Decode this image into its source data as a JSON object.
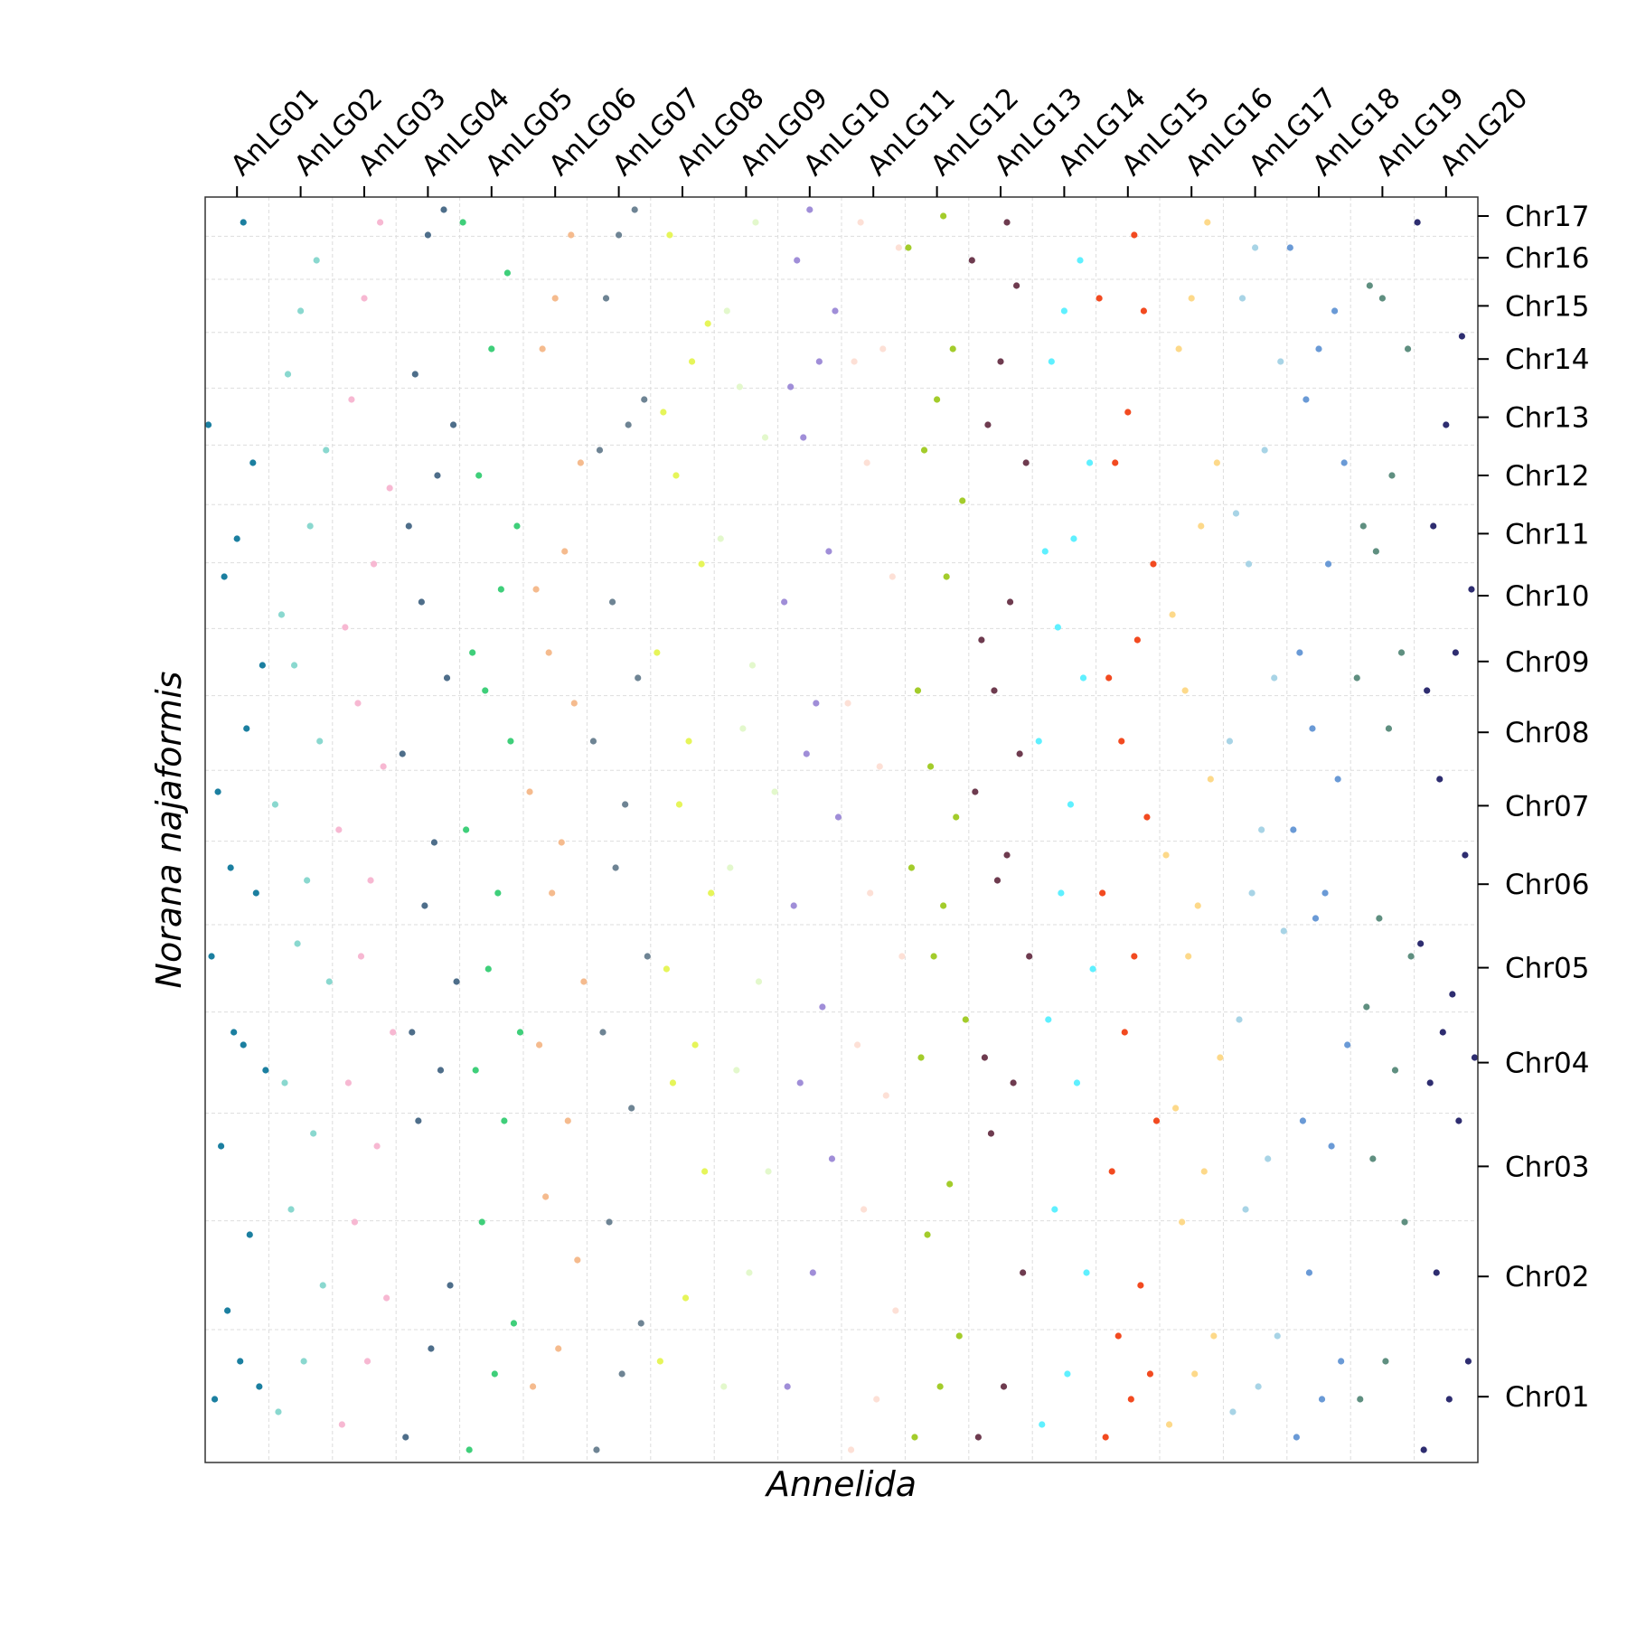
{
  "chart_data": {
    "type": "scatter",
    "xlabel": "Annelida",
    "ylabel": "Norana najaformis",
    "xlim": [
      0,
      20
    ],
    "ylim": [
      0,
      100
    ],
    "xticks": [
      {
        "value": 0.5,
        "label": "AnLG01"
      },
      {
        "value": 1.5,
        "label": "AnLG02"
      },
      {
        "value": 2.5,
        "label": "AnLG03"
      },
      {
        "value": 3.5,
        "label": "AnLG04"
      },
      {
        "value": 4.5,
        "label": "AnLG05"
      },
      {
        "value": 5.5,
        "label": "AnLG06"
      },
      {
        "value": 6.5,
        "label": "AnLG07"
      },
      {
        "value": 7.5,
        "label": "AnLG08"
      },
      {
        "value": 8.5,
        "label": "AnLG09"
      },
      {
        "value": 9.5,
        "label": "AnLG10"
      },
      {
        "value": 10.5,
        "label": "AnLG11"
      },
      {
        "value": 11.5,
        "label": "AnLG12"
      },
      {
        "value": 12.5,
        "label": "AnLG13"
      },
      {
        "value": 13.5,
        "label": "AnLG14"
      },
      {
        "value": 14.5,
        "label": "AnLG15"
      },
      {
        "value": 15.5,
        "label": "AnLG16"
      },
      {
        "value": 16.5,
        "label": "AnLG17"
      },
      {
        "value": 17.5,
        "label": "AnLG18"
      },
      {
        "value": 18.5,
        "label": "AnLG19"
      },
      {
        "value": 19.5,
        "label": "AnLG20"
      }
    ],
    "yticks": [
      {
        "value": 5.2,
        "label": "Chr01"
      },
      {
        "value": 14.7,
        "label": "Chr02"
      },
      {
        "value": 23.4,
        "label": "Chr03"
      },
      {
        "value": 31.6,
        "label": "Chr04"
      },
      {
        "value": 39.1,
        "label": "Chr05"
      },
      {
        "value": 45.7,
        "label": "Chr06"
      },
      {
        "value": 51.9,
        "label": "Chr07"
      },
      {
        "value": 57.7,
        "label": "Chr08"
      },
      {
        "value": 63.3,
        "label": "Chr09"
      },
      {
        "value": 68.5,
        "label": "Chr10"
      },
      {
        "value": 73.4,
        "label": "Chr11"
      },
      {
        "value": 78.0,
        "label": "Chr12"
      },
      {
        "value": 82.6,
        "label": "Chr13"
      },
      {
        "value": 87.2,
        "label": "Chr14"
      },
      {
        "value": 91.4,
        "label": "Chr15"
      },
      {
        "value": 95.2,
        "label": "Chr16"
      },
      {
        "value": 98.5,
        "label": "Chr17"
      }
    ],
    "xgrid": [
      1,
      2,
      3,
      4,
      5,
      6,
      7,
      8,
      9,
      10,
      11,
      12,
      13,
      14,
      15,
      16,
      17,
      18,
      19
    ],
    "ygrid": [
      10.5,
      19.1,
      27.6,
      35.6,
      42.5,
      49.1,
      54.7,
      60.6,
      65.9,
      71.1,
      75.7,
      80.4,
      84.9,
      89.3,
      93.5,
      96.9
    ],
    "series": [
      {
        "color": "#1b7fa0",
        "x": [
          0.15,
          0.55,
          0.85,
          0.35,
          0.7,
          0.25,
          0.95,
          0.45,
          0.6,
          0.1,
          0.8,
          0.4,
          0.2,
          0.65,
          0.9,
          0.3,
          0.5,
          0.75,
          0.05,
          0.6
        ],
        "values": [
          5,
          8,
          6,
          12,
          18,
          25,
          31,
          34,
          33,
          40,
          45,
          47,
          53,
          58,
          63,
          70,
          73,
          79,
          82,
          98
        ]
      },
      {
        "color": "#8ad8cf",
        "x": [
          1.15,
          1.55,
          1.85,
          1.35,
          1.7,
          1.25,
          1.95,
          1.45,
          1.6,
          1.1,
          1.8,
          1.4,
          1.2,
          1.65,
          1.9,
          1.3,
          1.5,
          1.75
        ],
        "values": [
          4,
          8,
          14,
          20,
          26,
          30,
          38,
          41,
          46,
          52,
          57,
          63,
          67,
          74,
          80,
          86,
          91,
          95
        ]
      },
      {
        "color": "#f7b8d2",
        "x": [
          2.15,
          2.55,
          2.85,
          2.35,
          2.7,
          2.25,
          2.95,
          2.45,
          2.6,
          2.1,
          2.8,
          2.4,
          2.2,
          2.65,
          2.9,
          2.3,
          2.5,
          2.75
        ],
        "values": [
          3,
          8,
          13,
          19,
          25,
          30,
          34,
          40,
          46,
          50,
          55,
          60,
          66,
          71,
          77,
          84,
          92,
          98
        ]
      },
      {
        "color": "#4e6e8a",
        "x": [
          3.15,
          3.55,
          3.85,
          3.35,
          3.7,
          3.25,
          3.95,
          3.45,
          3.6,
          3.1,
          3.8,
          3.4,
          3.2,
          3.65,
          3.9,
          3.3,
          3.5,
          3.75
        ],
        "values": [
          2,
          9,
          14,
          27,
          31,
          34,
          38,
          44,
          49,
          56,
          62,
          68,
          74,
          78,
          82,
          86,
          97,
          99
        ]
      },
      {
        "color": "#3fcf7a",
        "x": [
          4.15,
          4.55,
          4.85,
          4.35,
          4.7,
          4.25,
          4.95,
          4.45,
          4.6,
          4.1,
          4.8,
          4.4,
          4.2,
          4.65,
          4.9,
          4.3,
          4.5,
          4.75,
          4.05
        ],
        "values": [
          1,
          7,
          11,
          19,
          27,
          31,
          34,
          39,
          45,
          50,
          57,
          61,
          64,
          69,
          74,
          78,
          88,
          94,
          98
        ]
      },
      {
        "color": "#f5bb8e",
        "x": [
          5.15,
          5.55,
          5.85,
          5.35,
          5.7,
          5.25,
          5.95,
          5.45,
          5.6,
          5.1,
          5.8,
          5.4,
          5.2,
          5.65,
          5.9,
          5.3,
          5.5,
          5.75
        ],
        "values": [
          6,
          9,
          16,
          21,
          27,
          33,
          38,
          45,
          49,
          53,
          60,
          64,
          69,
          72,
          79,
          88,
          92,
          97
        ]
      },
      {
        "color": "#6e8494",
        "x": [
          6.15,
          6.55,
          6.85,
          6.35,
          6.7,
          6.25,
          6.95,
          6.45,
          6.6,
          6.1,
          6.8,
          6.4,
          6.2,
          6.65,
          6.9,
          6.3,
          6.5,
          6.75
        ],
        "values": [
          1,
          7,
          11,
          19,
          28,
          34,
          40,
          47,
          52,
          57,
          62,
          68,
          80,
          82,
          84,
          92,
          97,
          99
        ]
      },
      {
        "color": "#e6f55a",
        "x": [
          7.15,
          7.55,
          7.85,
          7.35,
          7.7,
          7.25,
          7.95,
          7.45,
          7.6,
          7.1,
          7.8,
          7.4,
          7.2,
          7.65,
          7.9,
          7.3
        ],
        "values": [
          8,
          13,
          23,
          30,
          33,
          39,
          45,
          52,
          57,
          64,
          71,
          78,
          83,
          87,
          90,
          97
        ]
      },
      {
        "color": "#e3f8cc",
        "x": [
          8.15,
          8.55,
          8.85,
          8.35,
          8.7,
          8.25,
          8.95,
          8.45,
          8.6,
          8.1,
          8.8,
          8.4,
          8.2,
          8.65
        ],
        "values": [
          6,
          15,
          23,
          31,
          38,
          47,
          53,
          58,
          63,
          73,
          81,
          85,
          91,
          98
        ]
      },
      {
        "color": "#a08ed8",
        "x": [
          9.15,
          9.55,
          9.85,
          9.35,
          9.7,
          9.25,
          9.95,
          9.45,
          9.6,
          9.1,
          9.8,
          9.4,
          9.2,
          9.65,
          9.9,
          9.3,
          9.5
        ],
        "values": [
          6,
          15,
          24,
          30,
          36,
          44,
          51,
          56,
          60,
          68,
          72,
          81,
          85,
          87,
          91,
          95,
          99
        ]
      },
      {
        "color": "#fde0d6",
        "x": [
          10.15,
          10.55,
          10.85,
          10.35,
          10.7,
          10.25,
          10.95,
          10.45,
          10.6,
          10.1,
          10.8,
          10.4,
          10.2,
          10.65,
          10.9,
          10.3
        ],
        "values": [
          1,
          5,
          12,
          20,
          29,
          33,
          40,
          45,
          55,
          60,
          70,
          79,
          87,
          88,
          96,
          98
        ]
      },
      {
        "color": "#a3cc2b",
        "x": [
          11.15,
          11.55,
          11.85,
          11.35,
          11.7,
          11.25,
          11.95,
          11.45,
          11.6,
          11.1,
          11.8,
          11.4,
          11.2,
          11.65,
          11.9,
          11.3,
          11.5,
          11.75,
          11.05,
          11.6
        ],
        "values": [
          2,
          6,
          10,
          18,
          22,
          32,
          35,
          40,
          44,
          47,
          51,
          55,
          61,
          70,
          76,
          80,
          84,
          88,
          96,
          98.5
        ]
      },
      {
        "color": "#6e3b4f",
        "x": [
          12.15,
          12.55,
          12.85,
          12.35,
          12.7,
          12.25,
          12.95,
          12.45,
          12.6,
          12.1,
          12.8,
          12.4,
          12.2,
          12.65,
          12.9,
          12.3,
          12.5,
          12.75,
          12.05,
          12.6
        ],
        "values": [
          2,
          6,
          15,
          26,
          30,
          32,
          40,
          46,
          48,
          53,
          56,
          61,
          65,
          68,
          79,
          82,
          87,
          93,
          95,
          98
        ]
      },
      {
        "color": "#5ff0ff",
        "x": [
          13.15,
          13.55,
          13.85,
          13.35,
          13.7,
          13.25,
          13.95,
          13.45,
          13.6,
          13.1,
          13.8,
          13.4,
          13.2,
          13.65,
          13.9,
          13.3,
          13.5,
          13.75
        ],
        "values": [
          3,
          7,
          15,
          20,
          30,
          35,
          39,
          45,
          52,
          57,
          62,
          66,
          72,
          73,
          79,
          87,
          91,
          95
        ]
      },
      {
        "color": "#f24a20",
        "x": [
          14.15,
          14.55,
          14.85,
          14.35,
          14.7,
          14.25,
          14.95,
          14.45,
          14.6,
          14.1,
          14.8,
          14.4,
          14.2,
          14.65,
          14.9,
          14.3,
          14.5,
          14.75,
          14.05,
          14.6
        ],
        "values": [
          2,
          5,
          7,
          10,
          14,
          23,
          27,
          34,
          40,
          45,
          51,
          57,
          62,
          65,
          71,
          79,
          83,
          91,
          92,
          97
        ]
      },
      {
        "color": "#fdd98a",
        "x": [
          15.15,
          15.55,
          15.85,
          15.35,
          15.7,
          15.25,
          15.95,
          15.45,
          15.6,
          15.1,
          15.8,
          15.4,
          15.2,
          15.65,
          15.9,
          15.3,
          15.5,
          15.75
        ],
        "values": [
          3,
          7,
          10,
          19,
          23,
          28,
          32,
          40,
          44,
          48,
          54,
          61,
          67,
          74,
          79,
          88,
          92,
          98
        ]
      },
      {
        "color": "#a8d4e6",
        "x": [
          16.15,
          16.55,
          16.85,
          16.35,
          16.7,
          16.25,
          16.95,
          16.45,
          16.6,
          16.1,
          16.8,
          16.4,
          16.2,
          16.65,
          16.9,
          16.3,
          16.5
        ],
        "values": [
          4,
          6,
          10,
          20,
          24,
          35,
          42,
          45,
          50,
          57,
          62,
          71,
          75,
          80,
          87,
          92,
          96
        ]
      },
      {
        "color": "#6a9ad6",
        "x": [
          17.15,
          17.55,
          17.85,
          17.35,
          17.7,
          17.25,
          17.95,
          17.45,
          17.6,
          17.1,
          17.8,
          17.4,
          17.2,
          17.65,
          17.9,
          17.3,
          17.5,
          17.75,
          17.05
        ],
        "values": [
          2,
          5,
          8,
          15,
          25,
          27,
          33,
          43,
          45,
          50,
          54,
          58,
          64,
          71,
          79,
          84,
          88,
          91,
          96
        ]
      },
      {
        "color": "#5f8f80",
        "x": [
          18.15,
          18.55,
          18.85,
          18.35,
          18.7,
          18.25,
          18.95,
          18.45,
          18.6,
          18.1,
          18.8,
          18.4,
          18.2,
          18.65,
          18.9,
          18.3,
          18.5
        ],
        "values": [
          5,
          8,
          19,
          24,
          31,
          36,
          40,
          43,
          58,
          62,
          64,
          72,
          74,
          78,
          88,
          93,
          92
        ]
      },
      {
        "color": "#2e2d70",
        "x": [
          19.15,
          19.55,
          19.85,
          19.35,
          19.7,
          19.25,
          19.95,
          19.45,
          19.6,
          19.1,
          19.8,
          19.4,
          19.2,
          19.65,
          19.9,
          19.3,
          19.5,
          19.75,
          19.05
        ],
        "values": [
          1,
          5,
          8,
          15,
          27,
          30,
          32,
          34,
          37,
          41,
          48,
          54,
          61,
          64,
          69,
          74,
          82,
          89,
          98
        ]
      }
    ]
  }
}
